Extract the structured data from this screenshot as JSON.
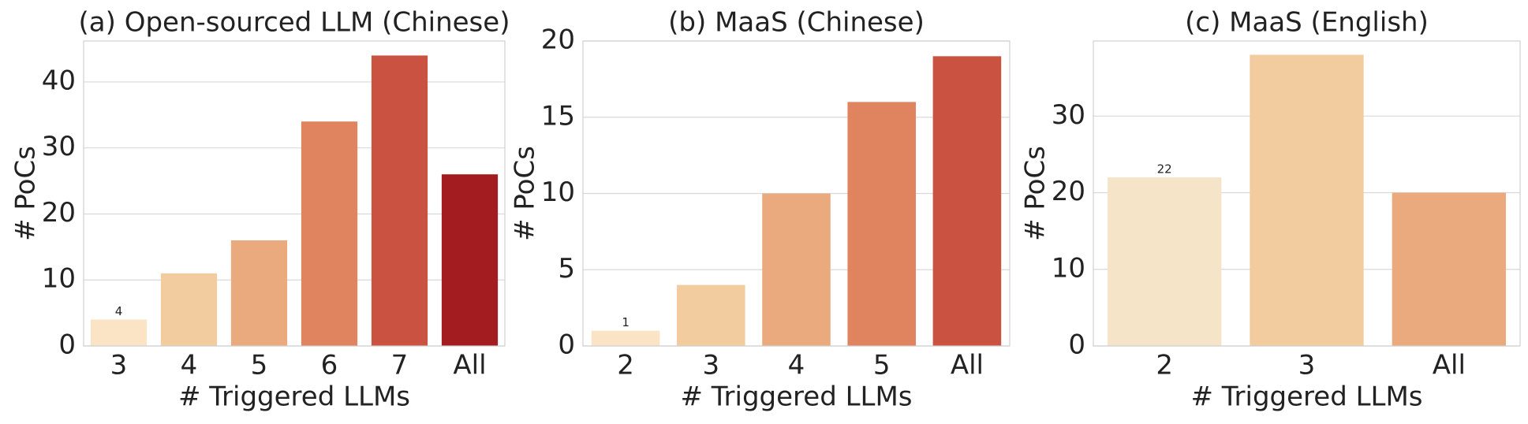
{
  "chart_data": [
    {
      "type": "bar",
      "title": "(a) Open-sourced LLM (Chinese)",
      "xlabel": "# Triggered LLMs",
      "ylabel": "# PoCs",
      "categories": [
        "3",
        "4",
        "5",
        "6",
        "7",
        "All"
      ],
      "values": [
        4,
        11,
        16,
        34,
        44,
        26
      ],
      "value_labels": [
        "4",
        null,
        null,
        null,
        null,
        null
      ],
      "colors": [
        "#fbe3c5",
        "#f2cb9f",
        "#ebaa7e",
        "#e0835f",
        "#c95240",
        "#a31c1f"
      ],
      "ylim": [
        0,
        46.2
      ],
      "yticks": [
        0,
        10,
        20,
        30,
        40
      ],
      "grid": true
    },
    {
      "type": "bar",
      "title": "(b) MaaS (Chinese)",
      "xlabel": "# Triggered LLMs",
      "ylabel": "# PoCs",
      "categories": [
        "2",
        "3",
        "4",
        "5",
        "All"
      ],
      "values": [
        1,
        4,
        10,
        16,
        19
      ],
      "value_labels": [
        "1",
        null,
        null,
        null,
        null
      ],
      "colors": [
        "#fbe3c5",
        "#f2cb9f",
        "#ebaa7e",
        "#e0835f",
        "#c95240"
      ],
      "ylim": [
        0,
        20
      ],
      "yticks": [
        0,
        5,
        10,
        15,
        20
      ],
      "grid": true
    },
    {
      "type": "bar",
      "title": "(c) MaaS (English)",
      "xlabel": "# Triggered LLMs",
      "ylabel": "# PoCs",
      "categories": [
        "2",
        "3",
        "All"
      ],
      "values": [
        22,
        38,
        20
      ],
      "value_labels": [
        "22",
        null,
        null
      ],
      "colors": [
        "#f6e4c8",
        "#f2cb9f",
        "#ebaa7e"
      ],
      "ylim": [
        0,
        39.8
      ],
      "yticks": [
        0,
        10,
        20,
        30
      ],
      "grid": true
    }
  ]
}
